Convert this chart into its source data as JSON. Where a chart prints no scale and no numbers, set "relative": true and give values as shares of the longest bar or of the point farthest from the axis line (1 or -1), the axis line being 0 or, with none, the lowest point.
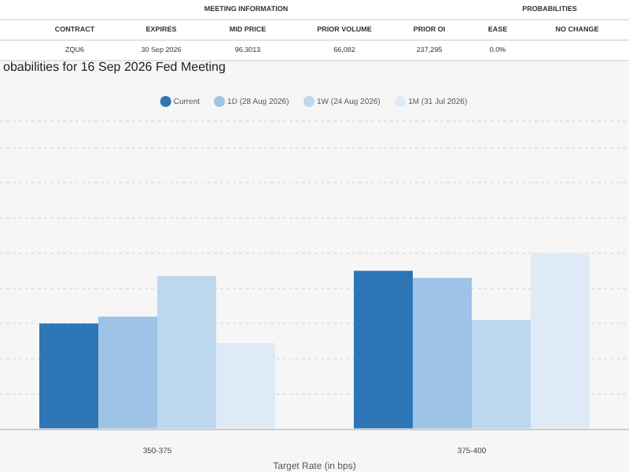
{
  "chart_data": {
    "type": "bar",
    "title": "obabilities for 16 Sep 2026 Fed Meeting",
    "xlabel": "Target Rate (in bps)",
    "annotations": [
      "MEETING INFORMATION",
      "PROBABILITIES",
      "CONTRACT",
      "EXPIRES",
      "MID PRICE",
      "PRIOR VOLUME",
      "PRIOR OI",
      "EASE",
      "NO CHANGE",
      "ZQU6",
      "30 Sep 2026",
      "96.3013",
      "66,082",
      "237,295",
      "0.0%"
    ],
    "categories": [
      "350-375",
      "375-400"
    ],
    "relative": true,
    "grid": "y",
    "legend": "top",
    "series": [
      {
        "name": "Current",
        "color": "#2e75b6",
        "values": [
          0.6,
          0.9
        ]
      },
      {
        "name": "1D (28 Aug 2026)",
        "color": "#9dc3e6",
        "values": [
          0.64,
          0.86
        ]
      },
      {
        "name": "1W (24 Aug 2026)",
        "color": "#bdd7ee",
        "values": [
          0.87,
          0.62
        ]
      },
      {
        "name": "1M (31 Jul 2026)",
        "color": "#deebf7",
        "values": [
          0.49,
          1
        ]
      }
    ]
  }
}
